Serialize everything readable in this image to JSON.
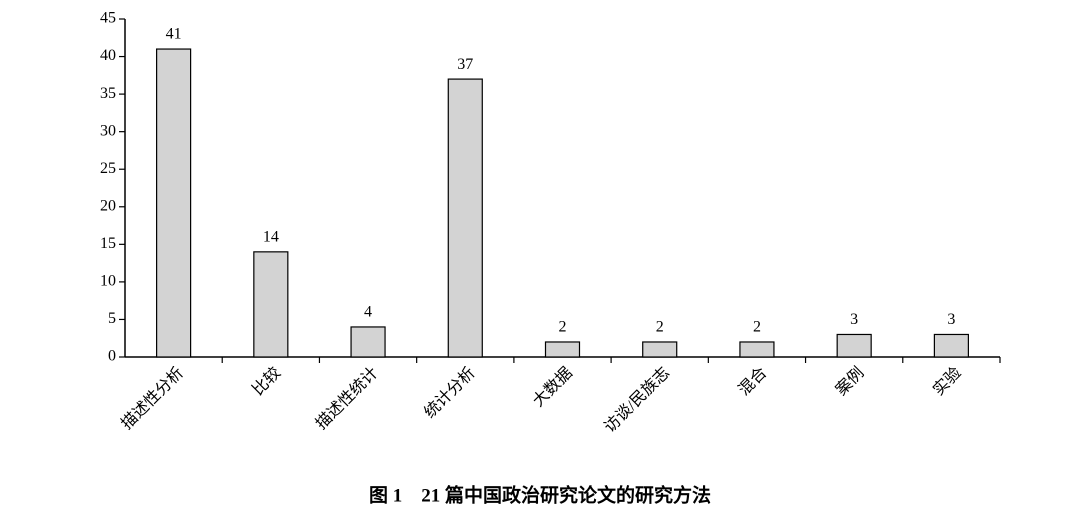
{
  "chart_data": {
    "type": "bar",
    "title": "图 1　21 篇中国政治研究论文的研究方法",
    "categories": [
      "描述性分析",
      "比较",
      "描述性统计",
      "统计分析",
      "大数据",
      "访谈/民族志",
      "混合",
      "案例",
      "实验"
    ],
    "values": [
      41,
      14,
      4,
      37,
      2,
      2,
      2,
      3,
      3
    ],
    "color": "#d3d3d3",
    "ylim": [
      0,
      45
    ],
    "yticks": [
      0,
      5,
      10,
      15,
      20,
      25,
      30,
      35,
      40,
      45
    ],
    "grid": false
  }
}
